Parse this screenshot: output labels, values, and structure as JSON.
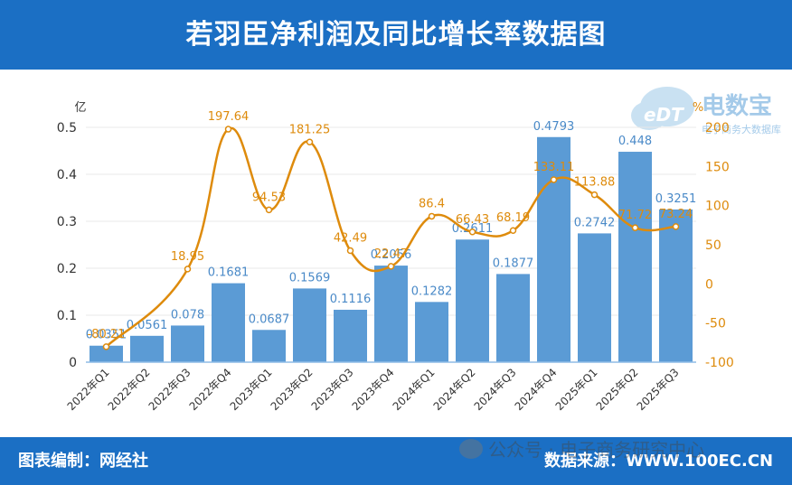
{
  "title": "若羽臣净利润及同比增长率数据图",
  "footer": {
    "left": "图表编制：网经社",
    "right": "数据来源：WWW.100EC.CN"
  },
  "watermark": {
    "text": "公众号 · 电子商务研究中心",
    "logo_text": "电数宝",
    "logo_sub": "电子商务大数据库"
  },
  "chart_data": {
    "type": "bar+line",
    "categories": [
      "2022年Q1",
      "2022年Q2",
      "2022年Q3",
      "2022年Q4",
      "2023年Q1",
      "2023年Q2",
      "2023年Q3",
      "2023年Q4",
      "2024年Q1",
      "2024年Q2",
      "2024年Q3",
      "2024年Q4",
      "2025年Q1",
      "2025年Q2",
      "2025年Q3"
    ],
    "series": [
      {
        "name": "净利润",
        "type": "bar",
        "unit": "亿",
        "axis": "left",
        "values": [
          0.0351,
          0.0561,
          0.078,
          0.1681,
          0.0687,
          0.1569,
          0.1116,
          0.2056,
          0.1282,
          0.2611,
          0.1877,
          0.4793,
          0.2742,
          0.448,
          0.3251
        ],
        "labels": [
          "0.0351",
          "0.0561",
          "0.078",
          "0.1681",
          "0.0687",
          "0.1569",
          "0.1116",
          "0.2056",
          "0.1282",
          "0.2611",
          "0.1877",
          "0.4793",
          "0.2742",
          "0.448",
          "0.3251"
        ]
      },
      {
        "name": "同比增长率",
        "type": "line",
        "unit": "%",
        "axis": "right",
        "values": [
          -80.21,
          null,
          18.95,
          197.64,
          94.53,
          181.25,
          42.49,
          22.47,
          86.4,
          66.43,
          68.19,
          133.11,
          113.88,
          71.72,
          73.24
        ],
        "labels": [
          "-80.21",
          "",
          "18.95",
          "197.64",
          "94.53",
          "181.25",
          "42.49",
          "22.47",
          "86.4",
          "66.43",
          "68.19",
          "133.11",
          "113.88",
          "71.72",
          "73.24"
        ]
      }
    ],
    "y_left": {
      "label": "亿",
      "min": 0,
      "max": 0.5,
      "ticks": [
        "0",
        "0.1",
        "0.2",
        "0.3",
        "0.4",
        "0.5"
      ]
    },
    "y_right": {
      "label": "%",
      "min": -100,
      "max": 200,
      "ticks": [
        "-100",
        "-50",
        "0",
        "50",
        "100",
        "150",
        "200"
      ]
    },
    "colors": {
      "bar": "#5b9bd5",
      "bar_label": "#4a8ac8",
      "line": "#de8b0c",
      "header": "#1b6fc4",
      "grid": "#e8e8e8"
    }
  }
}
